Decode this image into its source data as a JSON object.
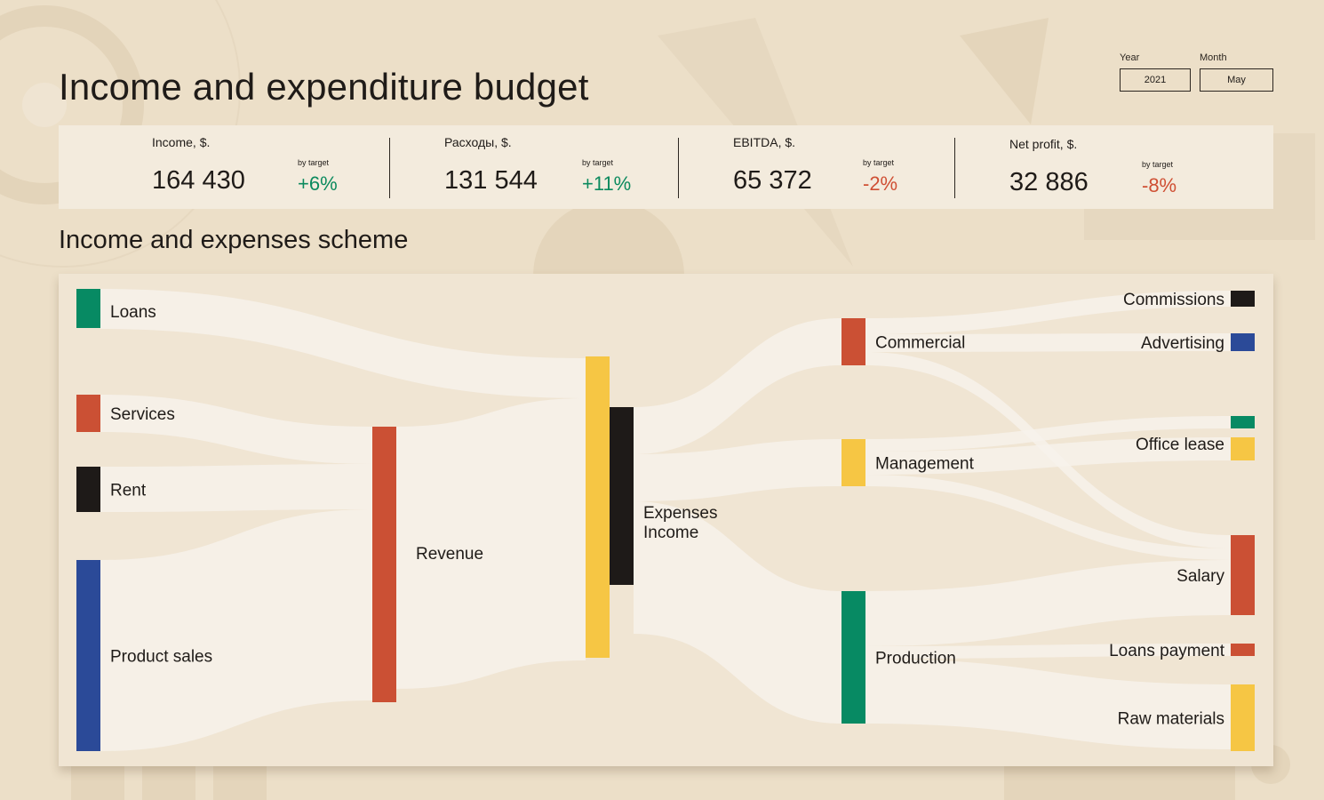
{
  "header": {
    "title": "Income and expenditure budget"
  },
  "filters": {
    "year": {
      "label": "Year",
      "value": "2021"
    },
    "month": {
      "label": "Month",
      "value": "May"
    }
  },
  "kpis": [
    {
      "label": "Income, $.",
      "value": "164 430",
      "sub": "by target",
      "delta": "+6%",
      "trend": "positive"
    },
    {
      "label": "Расходы, $.",
      "value": "131 544",
      "sub": "by target",
      "delta": "+11%",
      "trend": "positive"
    },
    {
      "label": "EBITDA, $.",
      "value": "65 372",
      "sub": "by target",
      "delta": "-2%",
      "trend": "negative"
    },
    {
      "label": "Net profit, $.",
      "value": "32 886",
      "sub": "by target",
      "delta": "-8%",
      "trend": "negative"
    }
  ],
  "section": {
    "title": "Income and expenses scheme"
  },
  "colors": {
    "green": "#078a63",
    "red": "#cb5034",
    "black": "#1e1a18",
    "blue": "#2b4a98",
    "yellow": "#f6c644",
    "link": "#f6f2ec"
  },
  "chart_data": {
    "type": "sankey",
    "nodes": [
      {
        "id": "loans",
        "label": "Loans",
        "color": "green"
      },
      {
        "id": "services",
        "label": "Services",
        "color": "red"
      },
      {
        "id": "rent",
        "label": "Rent",
        "color": "black"
      },
      {
        "id": "product_sales",
        "label": "Product sales",
        "color": "blue"
      },
      {
        "id": "revenue",
        "label": "Revenue",
        "color": "red"
      },
      {
        "id": "income",
        "label": "Income",
        "color": "yellow"
      },
      {
        "id": "expenses",
        "label": "Expenses",
        "color": "black"
      },
      {
        "id": "commercial",
        "label": "Commercial",
        "color": "red"
      },
      {
        "id": "management",
        "label": "Management",
        "color": "yellow"
      },
      {
        "id": "production",
        "label": "Production",
        "color": "green"
      },
      {
        "id": "commissions",
        "label": "Commissions",
        "color": "black"
      },
      {
        "id": "advertising",
        "label": "Advertising",
        "color": "blue"
      },
      {
        "id": "office_misc",
        "label": "",
        "color": "green"
      },
      {
        "id": "office_lease",
        "label": "Office lease",
        "color": "yellow"
      },
      {
        "id": "salary",
        "label": "Salary",
        "color": "red"
      },
      {
        "id": "loans_payment",
        "label": "Loans payment",
        "color": "red"
      },
      {
        "id": "raw_materials",
        "label": "Raw materials",
        "color": "yellow"
      }
    ],
    "links": [
      {
        "source": "loans",
        "target": "income",
        "value": 45
      },
      {
        "source": "services",
        "target": "revenue",
        "value": 42
      },
      {
        "source": "rent",
        "target": "revenue",
        "value": 51
      },
      {
        "source": "product_sales",
        "target": "revenue",
        "value": 215
      },
      {
        "source": "revenue",
        "target": "income",
        "value": 295
      },
      {
        "source": "expenses",
        "target": "commercial",
        "value": 53
      },
      {
        "source": "expenses",
        "target": "management",
        "value": 53
      },
      {
        "source": "expenses",
        "target": "production",
        "value": 149
      },
      {
        "source": "commercial",
        "target": "commissions",
        "value": 18
      },
      {
        "source": "commercial",
        "target": "advertising",
        "value": 20
      },
      {
        "source": "commercial",
        "target": "salary",
        "value": 15
      },
      {
        "source": "management",
        "target": "office_misc",
        "value": 14
      },
      {
        "source": "management",
        "target": "office_lease",
        "value": 26
      },
      {
        "source": "management",
        "target": "salary",
        "value": 13
      },
      {
        "source": "production",
        "target": "salary",
        "value": 62
      },
      {
        "source": "production",
        "target": "loans_payment",
        "value": 14
      },
      {
        "source": "production",
        "target": "raw_materials",
        "value": 73
      }
    ]
  }
}
